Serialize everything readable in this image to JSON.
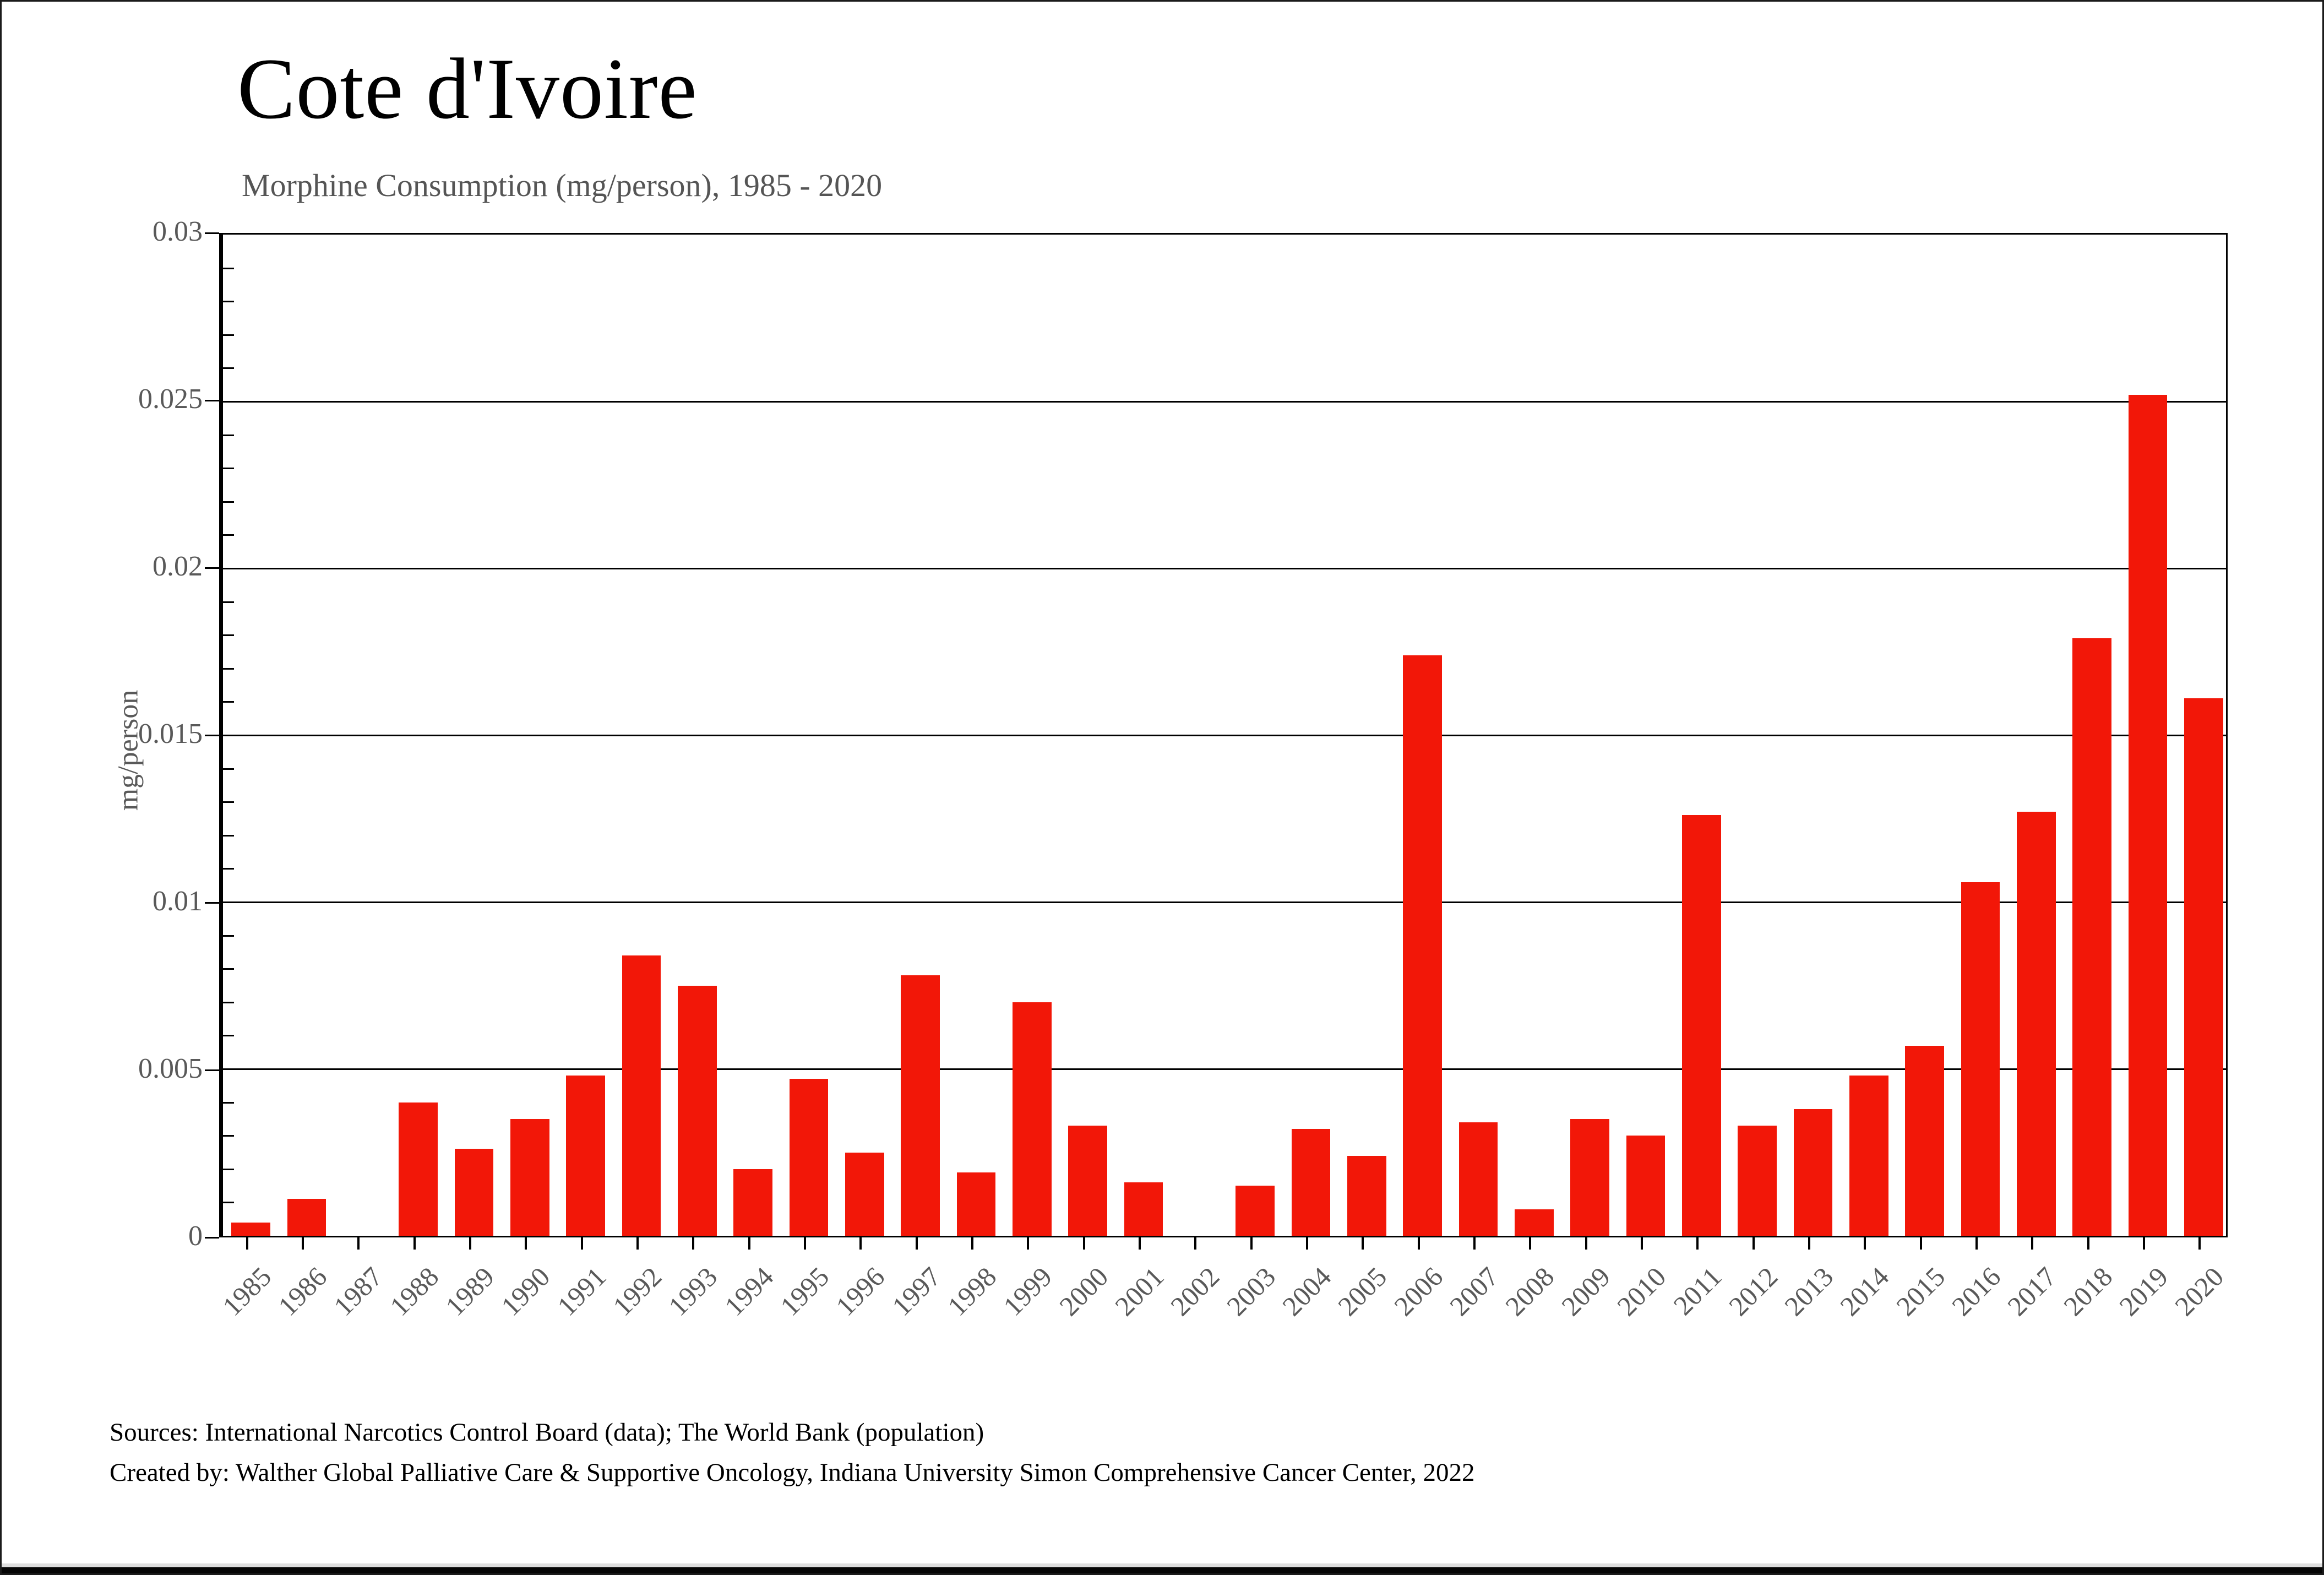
{
  "title": "Cote d'Ivoire",
  "subtitle": "Morphine Consumption (mg/person), 1985 - 2020",
  "y_axis_title": "mg/person",
  "footer": {
    "sources_line": "Sources: International Narcotics Control Board (data); The World Bank (population)",
    "created_line": "Created by: Walther  Global Palliative Care & Supportive Oncology, Indiana University Simon Comprehensive Cancer Center, 2022"
  },
  "chart_data": {
    "type": "bar",
    "title": "Cote d'Ivoire",
    "subtitle": "Morphine Consumption (mg/person), 1985 - 2020",
    "xlabel": "",
    "ylabel": "mg/person",
    "ylim": [
      0,
      0.03
    ],
    "yticks": [
      0,
      0.005,
      0.01,
      0.015,
      0.02,
      0.025,
      0.03
    ],
    "ytick_labels": [
      "0",
      "0.005",
      "0.01",
      "0.015",
      "0.02",
      "0.025",
      "0.03"
    ],
    "minor_tick_step": 0.001,
    "grid": true,
    "legend": false,
    "bar_color": "#f21708",
    "categories": [
      "1985",
      "1986",
      "1987",
      "1988",
      "1989",
      "1990",
      "1991",
      "1992",
      "1993",
      "1994",
      "1995",
      "1996",
      "1997",
      "1998",
      "1999",
      "2000",
      "2001",
      "2002",
      "2003",
      "2004",
      "2005",
      "2006",
      "2007",
      "2008",
      "2009",
      "2010",
      "2011",
      "2012",
      "2013",
      "2014",
      "2015",
      "2016",
      "2017",
      "2018",
      "2019",
      "2020"
    ],
    "values": [
      0.0004,
      0.0011,
      0,
      0.004,
      0.0026,
      0.0035,
      0.0048,
      0.0084,
      0.0075,
      0.002,
      0.0047,
      0.0025,
      0.0078,
      0.0019,
      0.007,
      0.0033,
      0.0016,
      0,
      0.0015,
      0.0032,
      0.0024,
      0.0174,
      0.0034,
      0.0008,
      0.0035,
      0.003,
      0.0126,
      0.0033,
      0.0038,
      0.0048,
      0.0057,
      0.0106,
      0.0127,
      0.0179,
      0.0252,
      0.0161
    ]
  }
}
